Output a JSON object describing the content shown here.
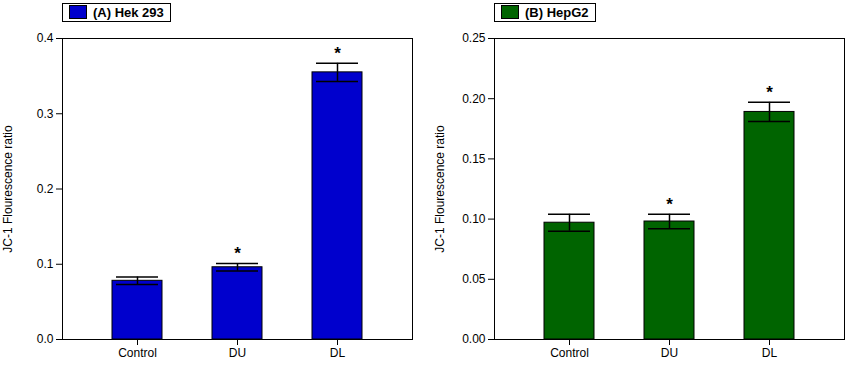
{
  "chart_data": [
    {
      "type": "bar",
      "categories": [
        "Control",
        "DU",
        "DL"
      ],
      "series": [
        {
          "name": "(A) Hek 293",
          "color": "#0000CD",
          "values": [
            0.078,
            0.096,
            0.355
          ],
          "errors": [
            0.005,
            0.005,
            0.012
          ]
        }
      ],
      "ylabel": "JC-1 Flourescence ratio",
      "ylim": [
        0.0,
        0.4
      ],
      "yticks": [
        {
          "value": 0.0,
          "label": "0.0"
        },
        0.1,
        0.2,
        0.3,
        0.4
      ],
      "annotations": [
        {
          "category": "DU",
          "text": "*"
        },
        {
          "category": "DL",
          "text": "*"
        }
      ],
      "legend": "upper left",
      "grid": false
    },
    {
      "type": "bar",
      "categories": [
        "Control",
        "DU",
        "DL"
      ],
      "series": [
        {
          "name": "(B) HepG2",
          "color": "#006400",
          "values": [
            0.097,
            0.098,
            0.189
          ],
          "errors": [
            0.007,
            0.006,
            0.008
          ]
        }
      ],
      "ylabel": "JC-1 Flourescence ratio",
      "ylim": [
        0.0,
        0.25
      ],
      "yticks": [
        {
          "value": 0.0,
          "label": "0.00"
        },
        0.05,
        {
          "value": 0.1,
          "label": "0.10"
        },
        0.15,
        {
          "value": 0.2,
          "label": "0.20"
        },
        0.25
      ],
      "annotations": [
        {
          "category": "DU",
          "text": "*"
        },
        {
          "category": "DL",
          "text": "*"
        }
      ],
      "legend": "upper left",
      "grid": false
    }
  ]
}
